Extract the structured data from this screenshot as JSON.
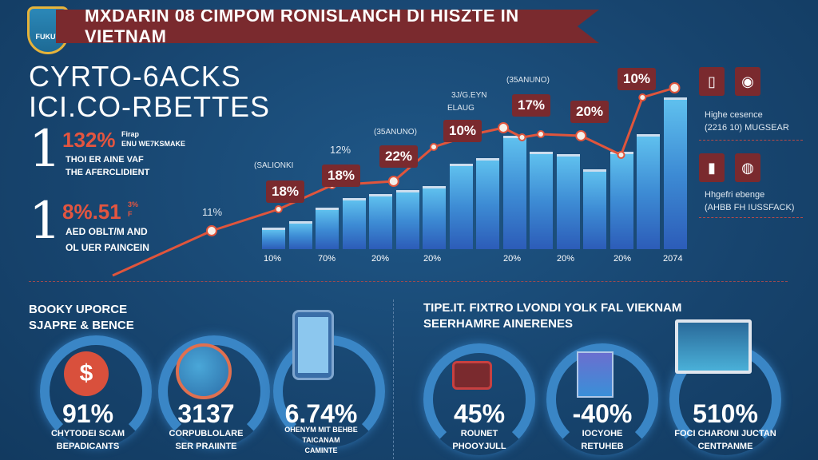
{
  "header": {
    "title": "MXDARIN 08 CIMPOM RONISLANCH DI HISZTE IN VIETNAM",
    "logo_text": "FUKUV"
  },
  "headline": [
    "CYRTO-6ACKS",
    "ICI.CO-RBETTES"
  ],
  "stats": [
    {
      "numeral": "1",
      "value": "132%",
      "note": [
        "Firap",
        "ENU WE7KSMAKE"
      ],
      "lines": [
        "THOI ER AINE VAF",
        "THE AFERCLIDIENT"
      ]
    },
    {
      "numeral": "1",
      "value": "8%.51",
      "note": [
        "3%",
        "F"
      ],
      "lines": [
        "AED OBLT/M AND",
        "OL UER PAINCEIN"
      ]
    }
  ],
  "chart_data": {
    "type": "bar",
    "title": "",
    "categories": [
      "1",
      "2",
      "3",
      "4",
      "5",
      "6",
      "7",
      "8",
      "9",
      "10",
      "11",
      "12",
      "13",
      "14",
      "15",
      "16"
    ],
    "values": [
      13.5,
      17.5,
      26,
      32,
      34.5,
      37,
      39.5,
      53.5,
      57,
      71,
      61,
      59.5,
      50,
      61,
      72,
      95
    ],
    "line": {
      "x": [
        -6,
        -2.3,
        0.2,
        2.2,
        4.5,
        6,
        7.5,
        8.6,
        9.3,
        10,
        11.5,
        13,
        13.8,
        15
      ],
      "y": [
        -16.5,
        11.5,
        25,
        40,
        42.5,
        64,
        72,
        76,
        70,
        72,
        71,
        59,
        95,
        101
      ]
    },
    "ylim": [
      -20,
      110
    ],
    "x_tick_labels": [
      "10%",
      "70%",
      "20%",
      "20%",
      "20%",
      "20%",
      "20%",
      "2074"
    ],
    "callouts": [
      "18%",
      "18%",
      "22%",
      "10%",
      "17%",
      "20%",
      "10%"
    ],
    "annotations": [
      "11%",
      "12%",
      "(SALIONKI",
      "(35ANUNO)",
      "3J/G.EYN",
      "ELAUG",
      "(35ANUNO)"
    ]
  },
  "legend": [
    {
      "title": "Highe cesence",
      "sub": "(2216 10) MUGSEAR"
    },
    {
      "title": "Hhgefri ebenge",
      "sub": "(AHBB FH IUSSFACK)"
    }
  ],
  "left_section": {
    "title": [
      "BOOKY UPORCE",
      "SJAPRE & BENCE"
    ],
    "items": [
      {
        "value": "91%",
        "caption": [
          "CHYTODEI SCAM",
          "BEPADICANTS"
        ]
      },
      {
        "value": "3137",
        "caption": [
          "CORPUBLOLARE",
          "SER PRAIINTE"
        ]
      },
      {
        "value": "6.74%",
        "caption": [
          "OHENYM MIT BEHBE",
          "TAICANAM",
          "CAMINTE"
        ]
      }
    ]
  },
  "right_section": {
    "title": [
      "TIPE.IT. FIXTRO LVONDI YOLK FAL VIEKNAM",
      "SEERHAMRE AINERENES"
    ],
    "items": [
      {
        "value": "45%",
        "caption": [
          "ROUNET",
          "PHOOYJULL"
        ]
      },
      {
        "value": "-40%",
        "caption": [
          "IOCYOHE",
          "RETUHEB"
        ]
      },
      {
        "value": "510%",
        "caption": [
          "FOCI CHARONI JUCTAN",
          "CENTPANME"
        ]
      }
    ]
  }
}
